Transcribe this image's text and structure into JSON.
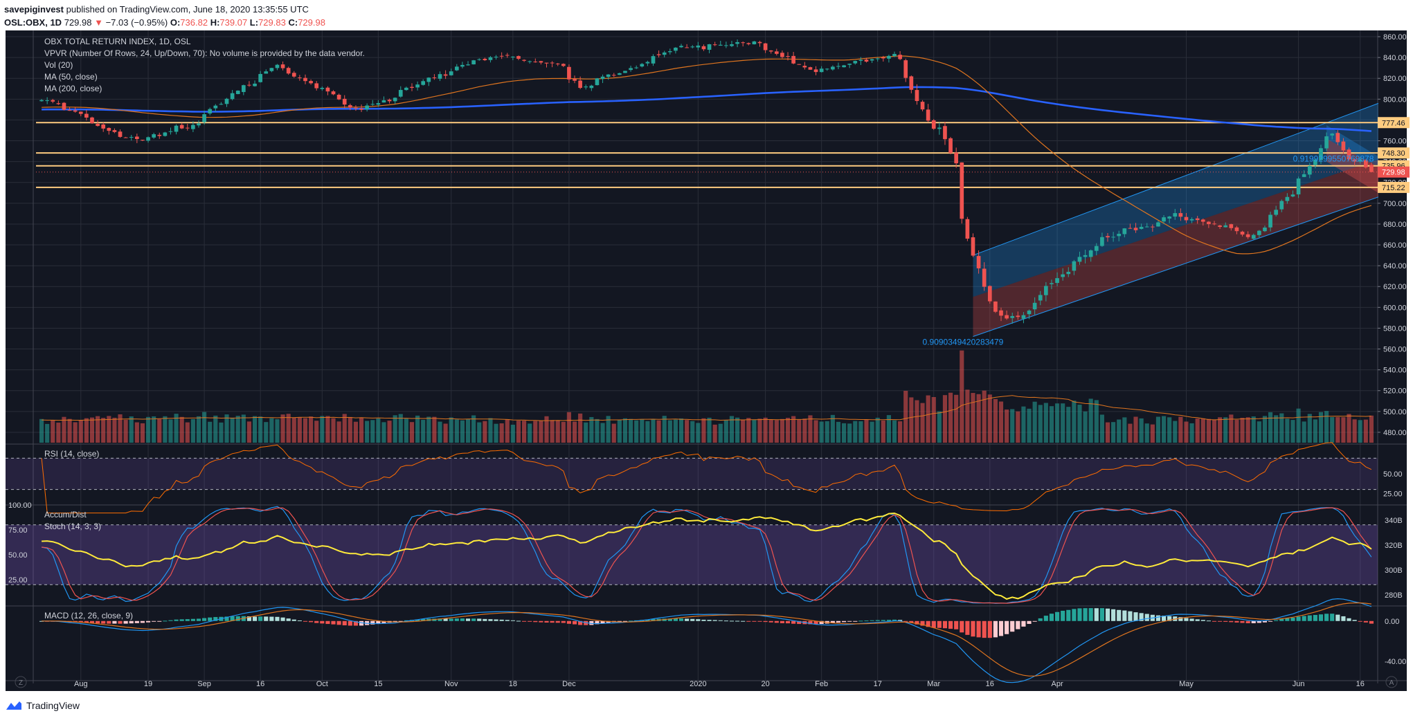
{
  "header": {
    "author": "savepiginvest",
    "published": "published on TradingView.com, June 18, 2020 13:35:55 UTC",
    "symbol": "OSL:OBX, 1D",
    "last": "729.98",
    "change": "−7.03 (−0.95%)",
    "o_label": "O:",
    "o": "736.82",
    "h_label": "H:",
    "h": "739.07",
    "l_label": "L:",
    "l": "729.83",
    "c_label": "C:",
    "c": "729.98"
  },
  "legend": {
    "title": "OBX TOTAL RETURN INDEX, 1D, OSL",
    "vpvr": "VPVR (Number Of Rows, 24, Up/Down, 70): No volume is provided by the data vendor.",
    "vol": "Vol (20)",
    "ma50": "MA (50, close)",
    "ma200": "MA (200, close)",
    "fib_low": "0.9090349420283479",
    "fib_high": "0.9199299550769878"
  },
  "panes": {
    "rsi": "RSI (14, close)",
    "accum": "Accum/Dist",
    "stoch": "Stoch (14, 3, 3)",
    "macd": "MACD (12, 26, close, 9)"
  },
  "footer": {
    "brand": "TradingView"
  },
  "colors": {
    "background": "#131722",
    "up": "#26a69a",
    "down": "#ef5350",
    "ma50": "#e0751f",
    "ma200": "#2962ff",
    "level": "#ffcc80",
    "rsi_line": "#ff6d00",
    "stoch_k": "#2196f3",
    "stoch_d": "#ef5350",
    "accum": "#ffeb3b",
    "channel_upper": "#2196f3",
    "channel_lower": "#ef5350"
  },
  "chart_data": [
    {
      "type": "candlestick",
      "title": "OBX TOTAL RETURN INDEX, 1D, OSL",
      "x_labels": [
        "Aug",
        "19",
        "Sep",
        "16",
        "Oct",
        "15",
        "Nov",
        "18",
        "Dec",
        "2020",
        "20",
        "Feb",
        "17",
        "Mar",
        "16",
        "Apr",
        "May",
        "Jun",
        "16"
      ],
      "y_ticks": [
        "860.00",
        "840.00",
        "820.00",
        "800.00",
        "780.00",
        "760.00",
        "740.00",
        "720.00",
        "700.00",
        "680.00",
        "660.00",
        "640.00",
        "620.00",
        "600.00",
        "580.00",
        "560.00",
        "540.00",
        "520.00",
        "500.00",
        "480.00"
      ],
      "ylim": [
        470,
        866
      ],
      "price_levels": [
        {
          "label": "777.46",
          "value": 777.46
        },
        {
          "label": "748.30",
          "value": 748.3
        },
        {
          "label": "735.96",
          "value": 735.96
        },
        {
          "label": "715.22",
          "value": 715.22
        }
      ],
      "last_price": {
        "label": "729.98",
        "value": 729.98
      },
      "anchors": [
        {
          "date": "2019-07-23",
          "close": 800
        },
        {
          "date": "2019-08-01",
          "close": 785
        },
        {
          "date": "2019-08-09",
          "close": 768
        },
        {
          "date": "2019-08-16",
          "close": 760
        },
        {
          "date": "2019-08-22",
          "close": 768
        },
        {
          "date": "2019-08-30",
          "close": 776
        },
        {
          "date": "2019-09-06",
          "close": 800
        },
        {
          "date": "2019-09-13",
          "close": 815
        },
        {
          "date": "2019-09-19",
          "close": 832
        },
        {
          "date": "2019-09-26",
          "close": 818
        },
        {
          "date": "2019-10-03",
          "close": 805
        },
        {
          "date": "2019-10-09",
          "close": 790
        },
        {
          "date": "2019-10-17",
          "close": 800
        },
        {
          "date": "2019-10-25",
          "close": 815
        },
        {
          "date": "2019-11-01",
          "close": 825
        },
        {
          "date": "2019-11-08",
          "close": 838
        },
        {
          "date": "2019-11-15",
          "close": 842
        },
        {
          "date": "2019-11-22",
          "close": 836
        },
        {
          "date": "2019-11-29",
          "close": 832
        },
        {
          "date": "2019-12-04",
          "close": 812
        },
        {
          "date": "2019-12-11",
          "close": 822
        },
        {
          "date": "2019-12-18",
          "close": 832
        },
        {
          "date": "2019-12-27",
          "close": 848
        },
        {
          "date": "2020-01-08",
          "close": 852
        },
        {
          "date": "2020-01-17",
          "close": 855
        },
        {
          "date": "2020-01-24",
          "close": 840
        },
        {
          "date": "2020-01-31",
          "close": 826
        },
        {
          "date": "2020-02-07",
          "close": 832
        },
        {
          "date": "2020-02-14",
          "close": 838
        },
        {
          "date": "2020-02-20",
          "close": 842
        },
        {
          "date": "2020-02-24",
          "close": 822
        },
        {
          "date": "2020-02-28",
          "close": 778
        },
        {
          "date": "2020-03-03",
          "close": 772
        },
        {
          "date": "2020-03-06",
          "close": 738
        },
        {
          "date": "2020-03-10",
          "close": 665
        },
        {
          "date": "2020-03-13",
          "close": 622
        },
        {
          "date": "2020-03-18",
          "close": 592
        },
        {
          "date": "2020-03-23",
          "close": 588
        },
        {
          "date": "2020-03-27",
          "close": 612
        },
        {
          "date": "2020-04-03",
          "close": 632
        },
        {
          "date": "2020-04-09",
          "close": 655
        },
        {
          "date": "2020-04-17",
          "close": 675
        },
        {
          "date": "2020-04-24",
          "close": 678
        },
        {
          "date": "2020-04-30",
          "close": 690
        },
        {
          "date": "2020-05-07",
          "close": 682
        },
        {
          "date": "2020-05-14",
          "close": 676
        },
        {
          "date": "2020-05-20",
          "close": 668
        },
        {
          "date": "2020-05-27",
          "close": 700
        },
        {
          "date": "2020-06-02",
          "close": 728
        },
        {
          "date": "2020-06-05",
          "close": 752
        },
        {
          "date": "2020-06-09",
          "close": 768
        },
        {
          "date": "2020-06-12",
          "close": 742
        },
        {
          "date": "2020-06-16",
          "close": 740
        },
        {
          "date": "2020-06-18",
          "close": 729.98
        }
      ],
      "indicators": [
        "Vol (20)",
        "MA (50, close)",
        "MA (200, close)"
      ]
    },
    {
      "type": "line",
      "title": "RSI (14, close)",
      "y_ticks": [
        "50.00",
        "25.00"
      ],
      "ylim": [
        12,
        88
      ],
      "bands": [
        70,
        30
      ]
    },
    {
      "type": "line",
      "title": "Stoch (14, 3, 3)",
      "y_ticks": [
        "100.00",
        "75.00",
        "50.00",
        "25.00"
      ],
      "ylim": [
        0,
        100
      ],
      "bands": [
        80,
        20
      ],
      "secondary_title": "Accum/Dist",
      "secondary_ticks": [
        "340B",
        "320B",
        "300B",
        "280B"
      ]
    },
    {
      "type": "bar",
      "title": "MACD (12, 26, close, 9)",
      "y_ticks": [
        "0.00",
        "-40.00"
      ],
      "ylim": [
        -58,
        15
      ]
    }
  ]
}
